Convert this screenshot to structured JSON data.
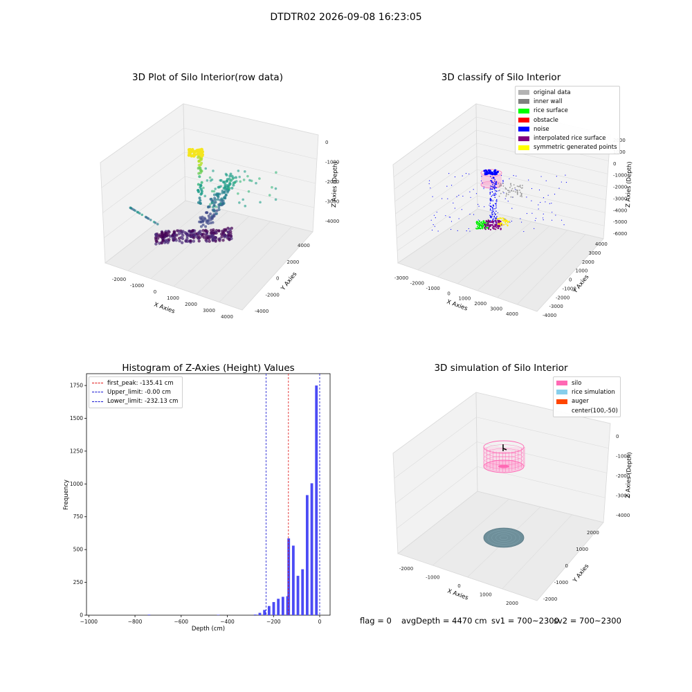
{
  "suptitle": "DTDTR02 2026-09-08 16:23:05",
  "colors": {
    "hist_bar": "#4b4bf5",
    "peak_line": "#e01010",
    "limit_line": "#1010d0"
  },
  "chart_data": [
    {
      "type": "scatter",
      "title": "3D Plot of Silo Interior(row data)",
      "xlabel": "X Axies",
      "ylabel": "Y Axies",
      "zlabel": "Z Axies (Depth)",
      "x_ticks": [
        "-2000",
        "-1000",
        "0",
        "1000",
        "2000",
        "3000",
        "4000"
      ],
      "y_ticks": [
        "-4000",
        "-2000",
        "0",
        "2000",
        "4000"
      ],
      "z_ticks": [
        "0",
        "-1000",
        "-2000",
        "-3000",
        "-4000"
      ],
      "colormap": "viridis"
    },
    {
      "type": "scatter",
      "title": "3D classify of Silo Interior",
      "xlabel": "X Axies",
      "ylabel": "Y Axies",
      "zlabel": "Z Axies (Depth)",
      "x_ticks": [
        "-3000",
        "-2000",
        "-1000",
        "0",
        "1000",
        "2000",
        "3000",
        "4000"
      ],
      "y_ticks": [
        "-4000",
        "-3000",
        "-2000",
        "-1000",
        "0",
        "1000",
        "2000",
        "3000",
        "4000"
      ],
      "z_ticks": [
        "2000",
        "1000",
        "0",
        "-1000",
        "-2000",
        "-3000",
        "-4000",
        "-5000",
        "-6000"
      ],
      "legend": [
        {
          "label": "original data",
          "color": "#b3b3b3"
        },
        {
          "label": "inner wall",
          "color": "#808080"
        },
        {
          "label": "rice surface",
          "color": "#00ff00"
        },
        {
          "label": "obstacle",
          "color": "#ff0000"
        },
        {
          "label": "noise",
          "color": "#0000ff"
        },
        {
          "label": "interpolated rice surface",
          "color": "#800080"
        },
        {
          "label": "symmetric generated points",
          "color": "#ffff00"
        }
      ]
    },
    {
      "type": "bar",
      "title": "Histogram of Z-Axies (Height) Values",
      "xlabel": "Depth (cm)",
      "ylabel": "Frequency",
      "xlim": [
        -1010,
        45
      ],
      "ylim": [
        0,
        1840
      ],
      "x_ticks": [
        "-1000",
        "-800",
        "-600",
        "-400",
        "-200",
        "0"
      ],
      "y_ticks": [
        "0",
        "250",
        "500",
        "750",
        "1000",
        "1250",
        "1500",
        "1750"
      ],
      "bin_width": 20,
      "bins": [
        {
          "x": -740,
          "value": 4
        },
        {
          "x": -440,
          "value": 3
        },
        {
          "x": -280,
          "value": 5
        },
        {
          "x": -260,
          "value": 18
        },
        {
          "x": -240,
          "value": 40
        },
        {
          "x": -220,
          "value": 70
        },
        {
          "x": -200,
          "value": 100
        },
        {
          "x": -180,
          "value": 125
        },
        {
          "x": -160,
          "value": 140
        },
        {
          "x": -140,
          "value": 145
        },
        {
          "x": -135,
          "value": 585
        },
        {
          "x": -115,
          "value": 530
        },
        {
          "x": -95,
          "value": 300
        },
        {
          "x": -75,
          "value": 350
        },
        {
          "x": -55,
          "value": 915
        },
        {
          "x": -35,
          "value": 1005
        },
        {
          "x": -15,
          "value": 1750
        }
      ],
      "lines": [
        {
          "label": "first_peak: -135.41 cm",
          "x": -135.41,
          "color": "#e01010"
        },
        {
          "label": "Upper_limit: -0.00 cm",
          "x": 0,
          "color": "#1010d0"
        },
        {
          "label": "Lower_limit: -232.13 cm",
          "x": -232.13,
          "color": "#1010d0"
        }
      ]
    },
    {
      "type": "scatter",
      "title": "3D simulation of Silo Interior",
      "xlabel": "X Axies",
      "ylabel": "Y Axies",
      "zlabel": "Z Axies (Depth)",
      "x_ticks": [
        "-2000",
        "-1000",
        "0",
        "1000",
        "2000"
      ],
      "y_ticks": [
        "-2000",
        "-1000",
        "0",
        "1000",
        "2000"
      ],
      "z_ticks": [
        "0",
        "-1000",
        "-2000",
        "-3000",
        "-4000"
      ],
      "legend": [
        {
          "label": "silo",
          "color": "#ff69b4"
        },
        {
          "label": "rice simulation",
          "color": "#87ceeb"
        },
        {
          "label": "auger",
          "color": "#ff4500"
        },
        {
          "label": "center(100,-50)",
          "color": ""
        }
      ]
    }
  ],
  "footer": {
    "flag": "flag = 0",
    "avg": "avgDepth = 4470 cm",
    "sv1": "sv1 = 700~2300",
    "sv2": "sv2 = 700~2300"
  }
}
